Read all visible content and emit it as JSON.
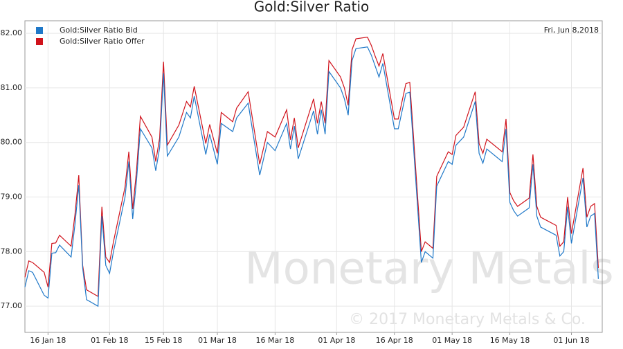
{
  "chart_data": {
    "type": "line",
    "title": "Gold:Silver Ratio",
    "date_label": "Fri, Jun 8,2018",
    "watermark": "Monetary Metals",
    "copyright": "© 2017 Monetary Metals & Co.",
    "x": [
      "2018-01-10",
      "2018-01-11",
      "2018-01-12",
      "2018-01-15",
      "2018-01-16",
      "2018-01-17",
      "2018-01-18",
      "2018-01-19",
      "2018-01-22",
      "2018-01-23",
      "2018-01-24",
      "2018-01-25",
      "2018-01-26",
      "2018-01-29",
      "2018-01-30",
      "2018-01-31",
      "2018-02-01",
      "2018-02-02",
      "2018-02-05",
      "2018-02-06",
      "2018-02-07",
      "2018-02-08",
      "2018-02-09",
      "2018-02-12",
      "2018-02-13",
      "2018-02-14",
      "2018-02-15",
      "2018-02-16",
      "2018-02-19",
      "2018-02-21",
      "2018-02-22",
      "2018-02-23",
      "2018-02-26",
      "2018-02-27",
      "2018-03-01",
      "2018-03-02",
      "2018-03-05",
      "2018-03-06",
      "2018-03-09",
      "2018-03-12",
      "2018-03-14",
      "2018-03-16",
      "2018-03-19",
      "2018-03-20",
      "2018-03-21",
      "2018-03-22",
      "2018-03-26",
      "2018-03-27",
      "2018-03-28",
      "2018-03-29",
      "2018-03-30",
      "2018-04-02",
      "2018-04-03",
      "2018-04-04",
      "2018-04-05",
      "2018-04-06",
      "2018-04-09",
      "2018-04-10",
      "2018-04-11",
      "2018-04-12",
      "2018-04-13",
      "2018-04-16",
      "2018-04-17",
      "2018-04-19",
      "2018-04-20",
      "2018-04-23",
      "2018-04-24",
      "2018-04-26",
      "2018-04-27",
      "2018-04-30",
      "2018-05-01",
      "2018-05-02",
      "2018-05-04",
      "2018-05-07",
      "2018-05-08",
      "2018-05-09",
      "2018-05-10",
      "2018-05-14",
      "2018-05-15",
      "2018-05-16",
      "2018-05-17",
      "2018-05-18",
      "2018-05-21",
      "2018-05-22",
      "2018-05-23",
      "2018-05-24",
      "2018-05-28",
      "2018-05-29",
      "2018-05-30",
      "2018-05-31",
      "2018-06-01",
      "2018-06-04",
      "2018-06-05",
      "2018-06-06",
      "2018-06-07",
      "2018-06-08"
    ],
    "series": [
      {
        "name": "Gold:Silver Ratio Bid",
        "color": "#1f78c8",
        "values": [
          77.35,
          77.65,
          77.62,
          77.2,
          77.15,
          77.97,
          77.98,
          78.12,
          77.9,
          78.5,
          79.22,
          77.7,
          77.12,
          77.0,
          78.65,
          77.75,
          77.6,
          78.0,
          79.0,
          79.65,
          78.6,
          79.3,
          80.25,
          79.9,
          79.48,
          79.9,
          81.27,
          79.75,
          80.1,
          80.55,
          80.45,
          80.85,
          79.78,
          80.15,
          79.6,
          80.35,
          80.2,
          80.45,
          80.72,
          79.4,
          80.0,
          79.85,
          80.35,
          79.88,
          80.3,
          79.7,
          80.58,
          80.15,
          80.6,
          80.15,
          81.3,
          81.0,
          80.8,
          80.5,
          81.5,
          81.72,
          81.75,
          81.6,
          81.4,
          81.2,
          81.45,
          80.25,
          80.25,
          80.9,
          80.92,
          77.8,
          78.0,
          77.88,
          79.2,
          79.65,
          79.6,
          79.95,
          80.1,
          80.75,
          79.8,
          79.62,
          79.88,
          79.65,
          80.25,
          78.9,
          78.75,
          78.65,
          78.8,
          79.6,
          78.65,
          78.45,
          78.3,
          77.92,
          78.0,
          78.82,
          78.15,
          79.35,
          78.45,
          78.65,
          78.7,
          77.5
        ]
      },
      {
        "name": "Gold:Silver Ratio Offer",
        "color": "#d0121b",
        "values": [
          77.53,
          77.83,
          77.8,
          77.62,
          77.35,
          78.15,
          78.16,
          78.3,
          78.1,
          78.68,
          79.4,
          77.75,
          77.3,
          77.18,
          78.82,
          77.9,
          77.8,
          78.18,
          79.18,
          79.83,
          78.78,
          79.48,
          80.48,
          80.1,
          79.65,
          80.08,
          81.48,
          79.95,
          80.32,
          80.75,
          80.65,
          81.03,
          79.98,
          80.33,
          79.8,
          80.55,
          80.38,
          80.63,
          80.93,
          79.6,
          80.2,
          80.1,
          80.6,
          80.05,
          80.45,
          79.9,
          80.8,
          80.35,
          80.75,
          80.35,
          81.5,
          81.2,
          81.0,
          80.68,
          81.7,
          81.9,
          81.93,
          81.78,
          81.58,
          81.4,
          81.63,
          80.43,
          80.43,
          81.08,
          81.1,
          78.0,
          78.18,
          78.06,
          79.38,
          79.83,
          79.78,
          80.13,
          80.28,
          80.93,
          79.98,
          79.8,
          80.06,
          79.83,
          80.43,
          79.08,
          78.93,
          78.83,
          78.98,
          79.78,
          78.83,
          78.63,
          78.48,
          78.1,
          78.18,
          79.0,
          78.33,
          79.53,
          78.63,
          78.83,
          78.88,
          77.7
        ]
      }
    ],
    "xlim": [
      "2018-01-10",
      "2018-06-09"
    ],
    "xticks": [
      {
        "value": "2018-01-16",
        "label": "16 Jan 18"
      },
      {
        "value": "2018-02-01",
        "label": "01 Feb 18"
      },
      {
        "value": "2018-02-15",
        "label": "15 Feb 18"
      },
      {
        "value": "2018-03-01",
        "label": "01 Mar 18"
      },
      {
        "value": "2018-03-16",
        "label": "16 Mar 18"
      },
      {
        "value": "2018-04-01",
        "label": "01 Apr 18"
      },
      {
        "value": "2018-04-16",
        "label": "16 Apr 18"
      },
      {
        "value": "2018-05-01",
        "label": "01 May 18"
      },
      {
        "value": "2018-05-16",
        "label": "16 May 18"
      },
      {
        "value": "2018-06-01",
        "label": "01 Jun 18"
      }
    ],
    "ylim": [
      76.52,
      82.23
    ],
    "yticks": [
      {
        "value": 77,
        "label": "77.00"
      },
      {
        "value": 78,
        "label": "78.00"
      },
      {
        "value": 79,
        "label": "79.00"
      },
      {
        "value": 80,
        "label": "80.00"
      },
      {
        "value": 81,
        "label": "81.00"
      },
      {
        "value": 82,
        "label": "82.00"
      }
    ],
    "grid": true,
    "legend": "upper left"
  }
}
